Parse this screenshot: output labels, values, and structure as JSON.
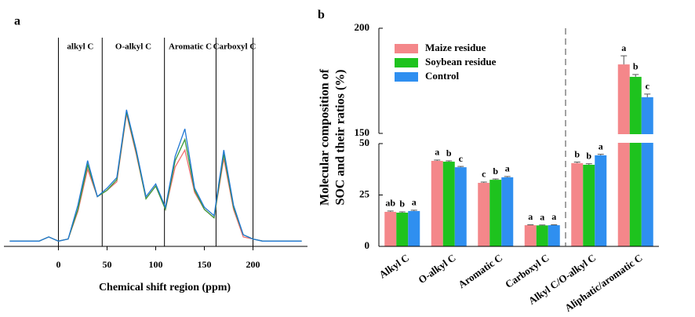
{
  "chart_data": [
    {
      "type": "line",
      "panel_label": "a",
      "xlabel": "Chemical shift region (ppm)",
      "x": [
        -50,
        -40,
        -30,
        -20,
        -10,
        0,
        10,
        20,
        30,
        40,
        50,
        60,
        70,
        80,
        90,
        100,
        110,
        120,
        130,
        140,
        150,
        160,
        170,
        180,
        190,
        200,
        210,
        220,
        230,
        240,
        250
      ],
      "series": [
        {
          "name": "Maize residue",
          "color": "#f07070",
          "values": [
            1,
            1,
            1,
            1,
            3,
            1,
            2,
            15,
            35,
            22,
            25,
            29,
            61,
            42,
            21,
            27,
            16,
            36,
            44,
            24,
            16,
            12,
            40,
            16,
            3,
            2,
            1,
            1,
            1,
            1,
            1
          ]
        },
        {
          "name": "Soybean residue",
          "color": "#3a9a3a",
          "values": [
            1,
            1,
            1,
            1,
            3,
            1,
            2,
            16,
            37,
            22,
            25,
            30,
            62,
            43,
            21,
            27,
            16,
            39,
            49,
            25,
            16,
            12,
            42,
            17,
            4,
            2,
            1,
            1,
            1,
            1,
            1
          ]
        },
        {
          "name": "Control",
          "color": "#1f77d4",
          "values": [
            1,
            1,
            1,
            1,
            3,
            1,
            2,
            18,
            39,
            22,
            26,
            31,
            63,
            44,
            22,
            28,
            17,
            41,
            54,
            26,
            17,
            13,
            44,
            18,
            4,
            2,
            1,
            1,
            1,
            1,
            1
          ]
        }
      ],
      "xlim": [
        -56,
        256
      ],
      "xticks": [
        0,
        50,
        100,
        150,
        200
      ],
      "ylim": [
        0,
        100
      ],
      "region_bounds": [
        0,
        45,
        109,
        162,
        200
      ],
      "region_labels": [
        "alkyl C",
        "O-alkyl C",
        "Aromatic C",
        "Carboxyl C"
      ]
    },
    {
      "type": "bar",
      "panel_label": "b",
      "ylabel": [
        "Molecular composition of",
        "SOC and their ratios (%)"
      ],
      "categories": [
        "Alkyl C",
        "O-alkyl C",
        "Aromatic C",
        "Carboxyl C",
        "Alkyl C/O-alkyl C",
        "Aliphatic/aromatic C"
      ],
      "series": [
        {
          "name": "Maize residue",
          "color": "#f4878a",
          "values": [
            16.8,
            41.6,
            30.9,
            10.3,
            40.5,
            182.8
          ],
          "errors": [
            0.4,
            0.4,
            0.4,
            0.2,
            0.5,
            4.1
          ],
          "letters": [
            "ab",
            "a",
            "c",
            "a",
            "b",
            "a"
          ]
        },
        {
          "name": "Soybean residue",
          "color": "#1ec31e",
          "values": [
            16.4,
            41.2,
            32.4,
            10.2,
            39.7,
            176.9
          ],
          "errors": [
            0.4,
            0.4,
            0.4,
            0.2,
            0.5,
            1.1
          ],
          "letters": [
            "b",
            "b",
            "b",
            "a",
            "b",
            "b"
          ]
        },
        {
          "name": "Control",
          "color": "#2f8ff0",
          "values": [
            17.2,
            38.5,
            33.6,
            10.3,
            44.3,
            167.2
          ],
          "errors": [
            0.4,
            0.4,
            0.4,
            0.2,
            0.5,
            1.5
          ],
          "letters": [
            "a",
            "c",
            "a",
            "a",
            "a",
            "c"
          ]
        }
      ],
      "ylim": [
        0,
        200
      ],
      "ybreak": [
        50,
        150
      ],
      "yticks": [
        0,
        25,
        50,
        150,
        200
      ],
      "divider_after": 3,
      "legend": "upper left"
    }
  ]
}
